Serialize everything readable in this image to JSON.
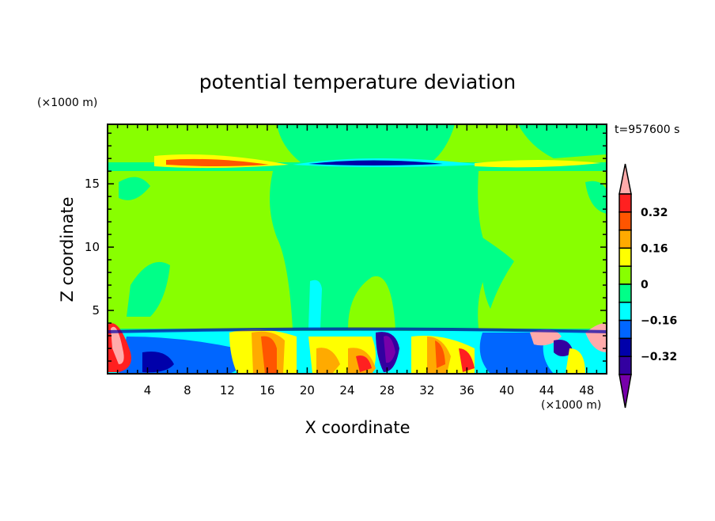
{
  "chart_data": {
    "type": "heatmap",
    "subtype": "filled-contour",
    "title": "potential temperature deviation",
    "xlabel": "X coordinate",
    "ylabel": "Z coordinate",
    "x_unit": "(×1000 m)",
    "y_unit": "(×1000 m)",
    "annotation": "t=957600 s",
    "xlim": [
      0,
      50
    ],
    "ylim": [
      0,
      19.7
    ],
    "x_ticks": [
      4,
      8,
      12,
      16,
      20,
      24,
      28,
      32,
      36,
      40,
      44,
      48
    ],
    "y_ticks": [
      5,
      10,
      15
    ],
    "colorbar": {
      "levels": [
        -0.4,
        -0.32,
        -0.24,
        -0.16,
        -0.08,
        0,
        0.08,
        0.16,
        0.24,
        0.32,
        0.4
      ],
      "labels": [
        "0.32",
        "0.16",
        "0",
        "−0.16",
        "−0.32"
      ],
      "label_values": [
        0.32,
        0.16,
        0,
        -0.16,
        -0.32
      ],
      "colors_top_to_bottom": [
        "#ffaaaa",
        "#ff2020",
        "#ff5500",
        "#ffaa00",
        "#ffff00",
        "#88ff00",
        "#00ff88",
        "#00ffff",
        "#0066ff",
        "#0000aa",
        "#3300a0",
        "#7700aa"
      ],
      "extend": "both"
    }
  }
}
